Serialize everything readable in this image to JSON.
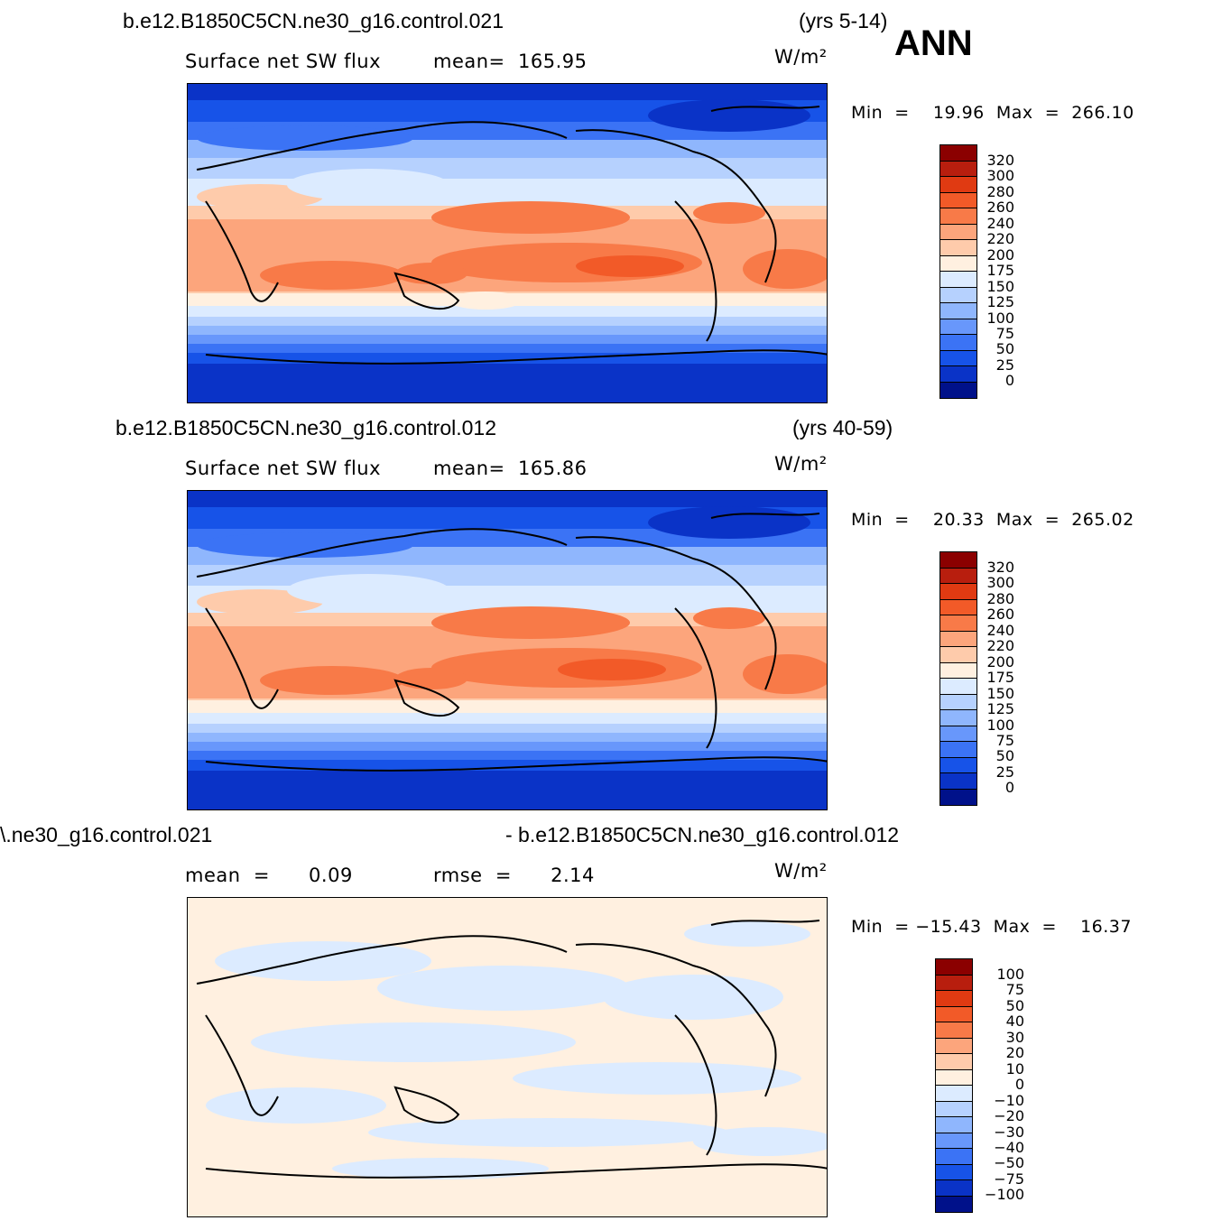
{
  "header": {
    "case1": "b.e12.B1850C5CN.ne30_g16.control.021",
    "years1": "(yrs 5-14)",
    "season": "ANN",
    "case2": "b.e12.B1850C5CN.ne30_g16.control.012",
    "years2": "(yrs 40-59)",
    "diff_left": "\\.ne30_g16.control.021",
    "diff_right": "- b.e12.B1850C5CN.ne30_g16.control.012"
  },
  "panels": [
    {
      "variable": "Surface net SW flux",
      "stat": "mean=  165.95",
      "units": "W/m²",
      "minmax": "Min  =    19.96  Max  =  266.10"
    },
    {
      "variable": "Surface net SW flux",
      "stat": "mean=  165.86",
      "units": "W/m²",
      "minmax": "Min  =    20.33  Max  =  265.02"
    },
    {
      "variable": "mean  =      0.09",
      "stat": "rmse  =      2.14",
      "units": "W/m²",
      "minmax": "Min  = −15.43  Max  =    16.37"
    }
  ],
  "colorbar_main": {
    "labels": [
      "320",
      "300",
      "280",
      "260",
      "240",
      "220",
      "200",
      "175",
      "150",
      "125",
      "100",
      "75",
      "50",
      "25",
      "0"
    ],
    "colors": [
      "#8b0000",
      "#b81e0e",
      "#e03a12",
      "#f25a28",
      "#f87a48",
      "#fca57c",
      "#fecbab",
      "#fff0e0",
      "#dcebff",
      "#b6d1fe",
      "#8fb6fd",
      "#6897fb",
      "#3b73f5",
      "#1753e8",
      "#0a33c7",
      "#00118a"
    ]
  },
  "colorbar_diff": {
    "labels": [
      "100",
      "75",
      "50",
      "40",
      "30",
      "20",
      "10",
      "0",
      "−10",
      "−20",
      "−30",
      "−40",
      "−50",
      "−75",
      "−100"
    ],
    "colors": [
      "#8b0000",
      "#b81e0e",
      "#e03a12",
      "#f25a28",
      "#f87a48",
      "#fca57c",
      "#fecbab",
      "#fff0e0",
      "#dcebff",
      "#b6d1fe",
      "#8fb6fd",
      "#6897fb",
      "#3b73f5",
      "#1753e8",
      "#0a33c7",
      "#00118a"
    ]
  }
}
